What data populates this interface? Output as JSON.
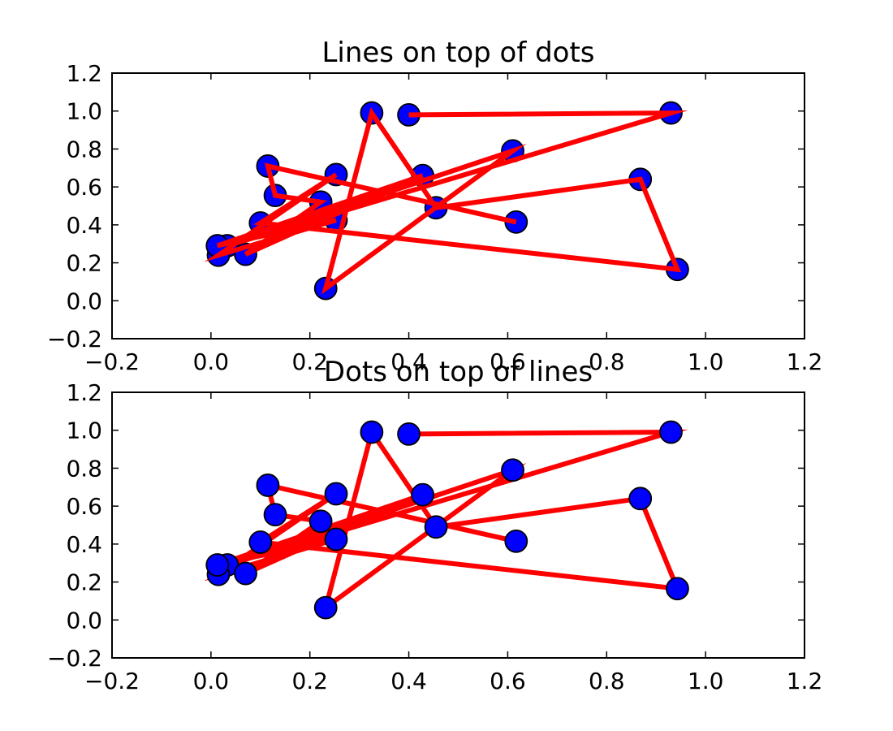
{
  "chart_data": [
    {
      "type": "scatter",
      "title": "Lines on top of dots",
      "xlabel": "",
      "ylabel": "",
      "xlim": [
        -0.2,
        1.2
      ],
      "ylim": [
        -0.2,
        1.2
      ],
      "x_ticks": [
        "−0.2",
        "0.0",
        "0.2",
        "0.4",
        "0.6",
        "0.8",
        "1.0",
        "1.2"
      ],
      "y_ticks": [
        "−0.2",
        "0.0",
        "0.2",
        "0.4",
        "0.6",
        "0.8",
        "1.0",
        "1.2"
      ],
      "grid": false,
      "layering": "lines-over-markers",
      "line_color": "#ff0000",
      "marker_color": "#0000ff",
      "marker_edge_color": "#000000",
      "points": [
        {
          "x": 0.4,
          "y": 0.98
        },
        {
          "x": 0.93,
          "y": 0.99
        },
        {
          "x": 0.033,
          "y": 0.29
        },
        {
          "x": 0.61,
          "y": 0.79
        },
        {
          "x": 0.232,
          "y": 0.065
        },
        {
          "x": 0.325,
          "y": 0.99
        },
        {
          "x": 0.455,
          "y": 0.49
        },
        {
          "x": 0.868,
          "y": 0.64
        },
        {
          "x": 0.943,
          "y": 0.165
        },
        {
          "x": 0.1,
          "y": 0.41
        },
        {
          "x": 0.253,
          "y": 0.665
        },
        {
          "x": 0.015,
          "y": 0.24
        },
        {
          "x": 0.253,
          "y": 0.425
        },
        {
          "x": 0.013,
          "y": 0.29
        },
        {
          "x": 0.428,
          "y": 0.66
        },
        {
          "x": 0.07,
          "y": 0.245
        },
        {
          "x": 0.222,
          "y": 0.52
        },
        {
          "x": 0.13,
          "y": 0.555
        },
        {
          "x": 0.115,
          "y": 0.71
        },
        {
          "x": 0.617,
          "y": 0.415
        }
      ]
    },
    {
      "type": "scatter",
      "title": "Dots on top of lines",
      "xlabel": "",
      "ylabel": "",
      "xlim": [
        -0.2,
        1.2
      ],
      "ylim": [
        -0.2,
        1.2
      ],
      "x_ticks": [
        "−0.2",
        "0.0",
        "0.2",
        "0.4",
        "0.6",
        "0.8",
        "1.0",
        "1.2"
      ],
      "y_ticks": [
        "−0.2",
        "0.0",
        "0.2",
        "0.4",
        "0.6",
        "0.8",
        "1.0",
        "1.2"
      ],
      "grid": false,
      "layering": "markers-over-lines",
      "line_color": "#ff0000",
      "marker_color": "#0000ff",
      "marker_edge_color": "#000000",
      "points": [
        {
          "x": 0.4,
          "y": 0.98
        },
        {
          "x": 0.93,
          "y": 0.99
        },
        {
          "x": 0.033,
          "y": 0.29
        },
        {
          "x": 0.61,
          "y": 0.79
        },
        {
          "x": 0.232,
          "y": 0.065
        },
        {
          "x": 0.325,
          "y": 0.99
        },
        {
          "x": 0.455,
          "y": 0.49
        },
        {
          "x": 0.868,
          "y": 0.64
        },
        {
          "x": 0.943,
          "y": 0.165
        },
        {
          "x": 0.1,
          "y": 0.41
        },
        {
          "x": 0.253,
          "y": 0.665
        },
        {
          "x": 0.015,
          "y": 0.24
        },
        {
          "x": 0.253,
          "y": 0.425
        },
        {
          "x": 0.013,
          "y": 0.29
        },
        {
          "x": 0.428,
          "y": 0.66
        },
        {
          "x": 0.07,
          "y": 0.245
        },
        {
          "x": 0.222,
          "y": 0.52
        },
        {
          "x": 0.13,
          "y": 0.555
        },
        {
          "x": 0.115,
          "y": 0.71
        },
        {
          "x": 0.617,
          "y": 0.415
        }
      ]
    }
  ]
}
